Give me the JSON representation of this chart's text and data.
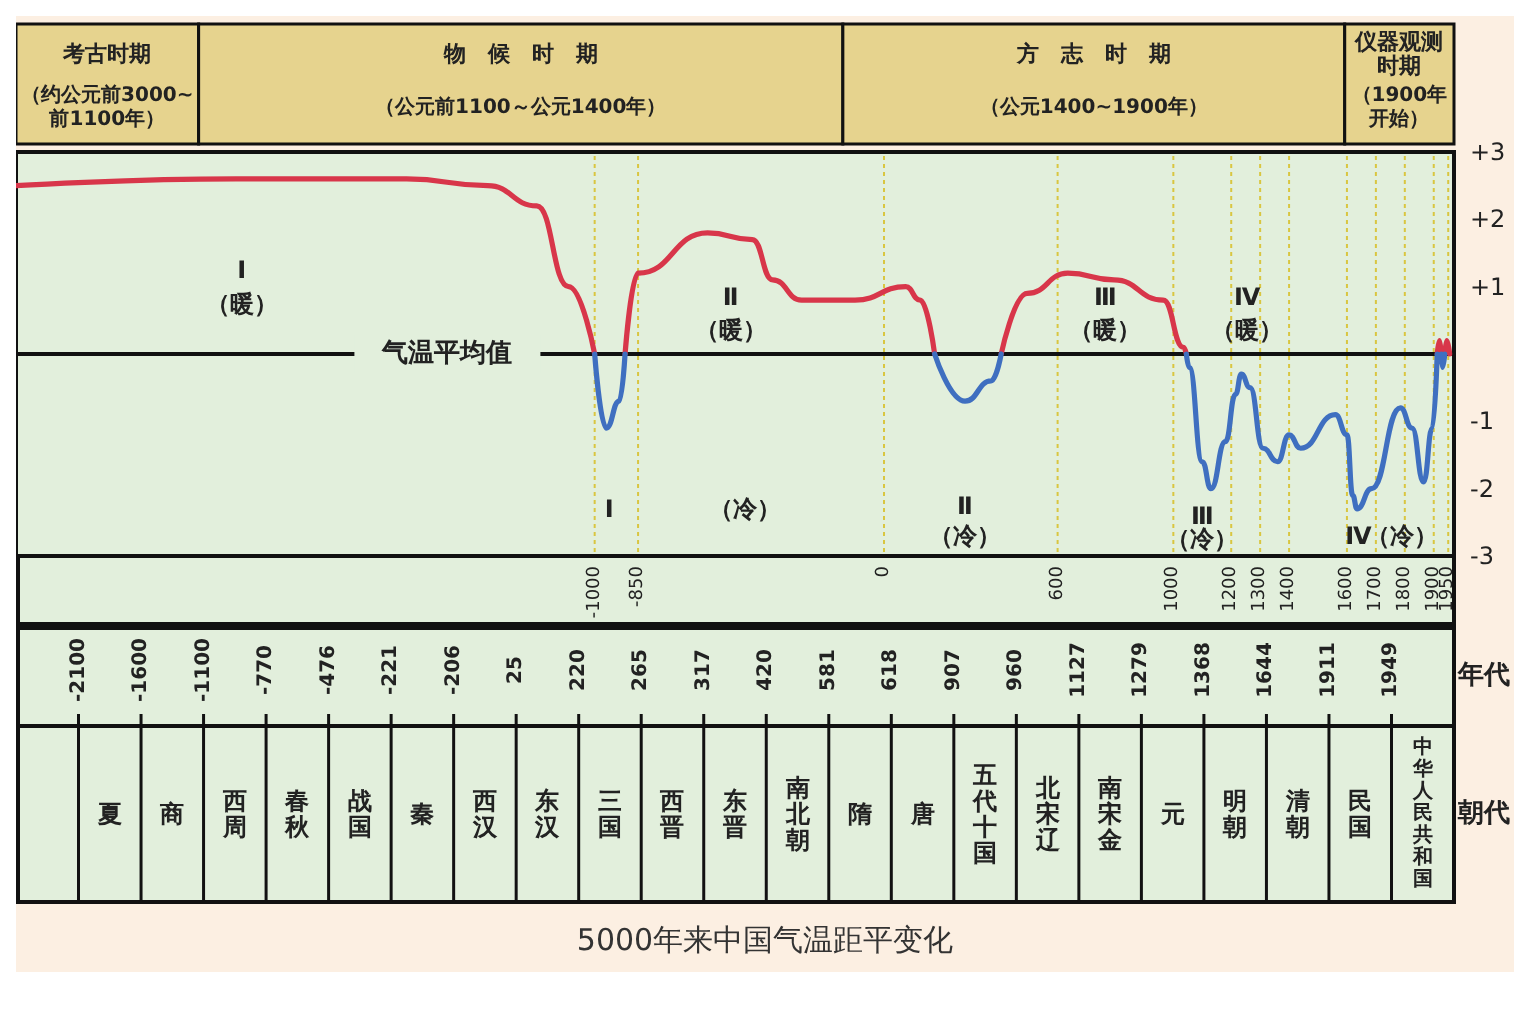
{
  "chart_data": [
    {
      "type": "line",
      "title": "5000年来中国气温距平变化",
      "x": [
        -3000,
        -2240,
        -1650,
        -1370,
        -1200,
        -1090,
        -1000,
        -960,
        -915,
        -895,
        -850,
        -610,
        -455,
        -385,
        -285,
        -100,
        75,
        125,
        175,
        280,
        370,
        405,
        495,
        635,
        795,
        965,
        1035,
        1045,
        1055,
        1100,
        1130,
        1180,
        1215,
        1235,
        1265,
        1310,
        1360,
        1400,
        1440,
        1560,
        1600,
        1620,
        1635,
        1685,
        1785,
        1825,
        1865,
        1895,
        1912,
        1920,
        1926,
        1930,
        1938,
        1945,
        1955
      ],
      "series": [
        {
          "color": "#d8364a",
          "values": [
            2.5,
            2.6,
            2.6,
            2.5,
            2.2,
            1.0,
            0,
            null,
            null,
            0,
            1.2,
            1.8,
            1.7,
            1.1,
            0.8,
            0.8,
            1.0,
            0.8,
            0,
            null,
            null,
            0,
            0.9,
            1.2,
            1.1,
            0.8,
            0.1,
            0,
            null,
            null,
            null,
            null,
            null,
            null,
            null,
            null,
            null,
            null,
            null,
            null,
            null,
            null,
            null,
            null,
            null,
            null,
            null,
            null,
            0,
            0.2,
            0,
            null,
            0,
            0.2,
            0.0
          ]
        },
        {
          "color": "#3f6fc0",
          "values": [
            null,
            null,
            null,
            null,
            null,
            null,
            0,
            -1.1,
            -0.7,
            0,
            null,
            null,
            null,
            null,
            null,
            null,
            null,
            null,
            0,
            -0.7,
            -0.4,
            0,
            null,
            null,
            null,
            null,
            null,
            0,
            -0.2,
            -1.6,
            -2.0,
            -1.3,
            -0.6,
            -0.3,
            -0.5,
            -1.4,
            -1.6,
            -1.2,
            -1.4,
            -0.9,
            -1.2,
            -2.1,
            -2.3,
            -2.0,
            -0.8,
            -1.1,
            -1.9,
            -1.1,
            0,
            null,
            0,
            -0.2,
            0,
            null,
            null
          ]
        }
      ],
      "xlim": [
        -3000,
        1970
      ],
      "xticks": [
        -1000,
        -850,
        0,
        600,
        1000,
        1200,
        1300,
        1400,
        1600,
        1700,
        1800,
        1900,
        1950
      ],
      "ylim": [
        -3,
        3
      ],
      "yticks": [
        {
          "value": 3,
          "label": "+3"
        },
        {
          "value": 2,
          "label": "+2"
        },
        {
          "value": 1,
          "label": "+1"
        },
        -1,
        -2,
        -3
      ],
      "grid": "x",
      "marker": "none",
      "ref_lines": [
        {
          "axis": "y",
          "value": 0,
          "label": "气温平均值"
        }
      ],
      "annotations": [
        "考古时期",
        "（约公元前3000~前1100年）",
        "物　候　时　期",
        "（公元前1100～公元1400年）",
        "方　志　时　期",
        "（公元1400~1900年）",
        "仪器观测时期",
        "（1900年开始）",
        "Ⅰ",
        "（暖）",
        "Ⅱ",
        "（暖）",
        "Ⅲ",
        "（暖）",
        "Ⅳ",
        "（暖）",
        "Ⅰ",
        "（冷）",
        "Ⅱ",
        "（冷）",
        "Ⅲ",
        "（冷）",
        "Ⅳ",
        "（冷）"
      ]
    },
    {
      "type": "other",
      "categories": [
        "夏",
        "商",
        "西周",
        "春秋",
        "战国",
        "秦",
        "西汉",
        "东汉",
        "三国",
        "西晋",
        "东晋",
        "南北朝",
        "隋",
        "唐",
        "五代十国",
        "北宋辽",
        "南宋金",
        "元",
        "明朝",
        "清朝",
        "民国",
        "中华人民共和国"
      ],
      "y_categories": [
        "年代",
        "朝代"
      ],
      "annotations": [
        "-2100",
        "-1600",
        "-1100",
        "-770",
        "-476",
        "-221",
        "-206",
        "25",
        "220",
        "265",
        "317",
        "420",
        "581",
        "618",
        "907",
        "960",
        "1127",
        "1279",
        "1368",
        "1644",
        "1911",
        "1949"
      ]
    }
  ]
}
